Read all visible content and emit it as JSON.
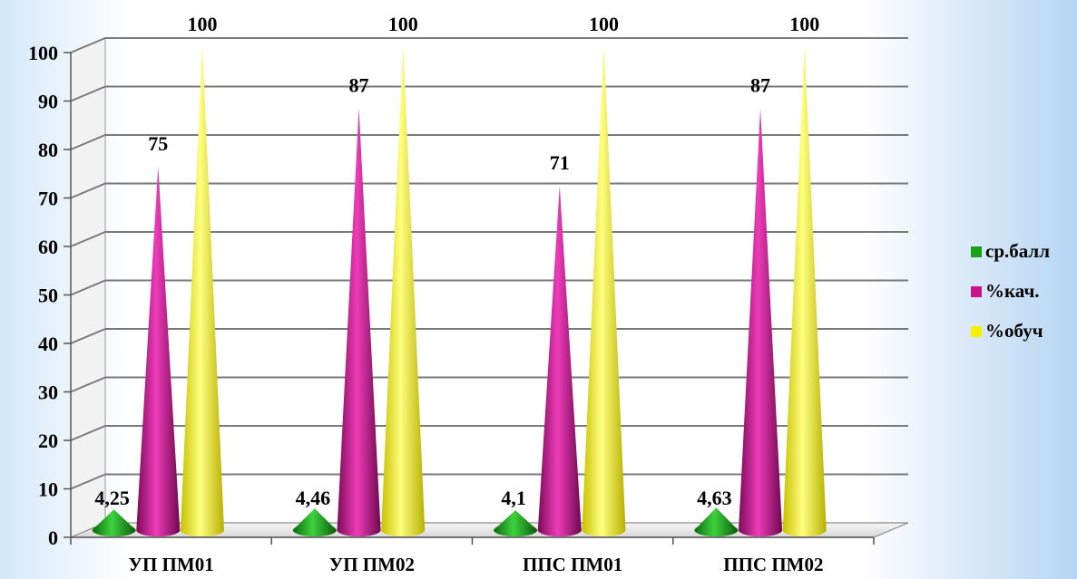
{
  "chart_data": {
    "type": "bar",
    "variant": "3d-cone",
    "title": "",
    "xlabel": "",
    "ylabel": "",
    "ylim": [
      0,
      100
    ],
    "yticks": [
      0,
      10,
      20,
      30,
      40,
      50,
      60,
      70,
      80,
      90,
      100
    ],
    "grid": true,
    "legend_position": "right",
    "categories": [
      "УП ПМ01",
      "УП ПМ02",
      "ППС ПМ01",
      "ППС ПМ02"
    ],
    "series": [
      {
        "name": "ср.балл",
        "color": "#1aa01a",
        "values": [
          4.25,
          4.46,
          4.1,
          4.63
        ],
        "labels": [
          "4,25",
          "4,46",
          "4,1",
          "4,63"
        ]
      },
      {
        "name": "%кач.",
        "color": "#c8148c",
        "values": [
          75,
          87,
          71,
          87
        ],
        "labels": [
          "75",
          "87",
          "71",
          "87"
        ]
      },
      {
        "name": "%обуч",
        "color": "#f5f000",
        "values": [
          100,
          100,
          100,
          100
        ],
        "labels": [
          "100",
          "100",
          "100",
          "100"
        ]
      }
    ]
  }
}
